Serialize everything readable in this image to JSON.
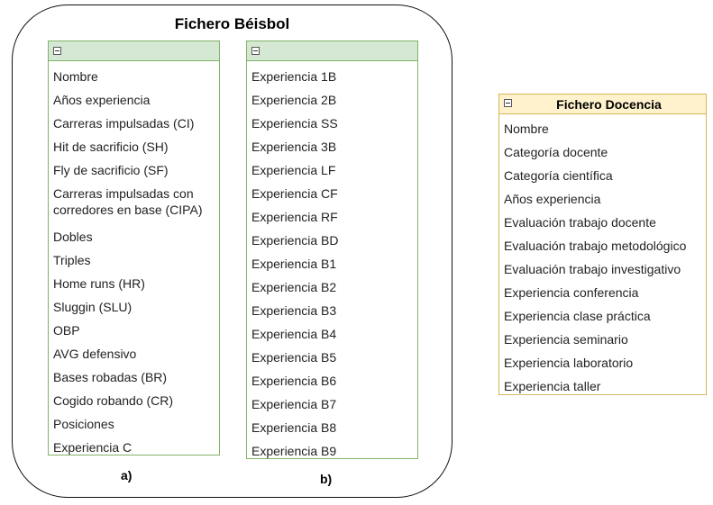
{
  "fichero_beisbol": {
    "title": "Fichero Béisbol",
    "caption_a": "a)",
    "caption_b": "b)",
    "table_a": {
      "attributes": [
        "Nombre",
        "Años experiencia",
        "Carreras impulsadas (CI)",
        "Hit de sacrificio (SH)",
        "Fly de sacrificio (SF)",
        "Carreras impulsadas con corredores en base (CIPA)",
        "Dobles",
        "Triples",
        "Home runs (HR)",
        "Sluggin (SLU)",
        "OBP",
        "AVG defensivo",
        "Bases robadas (BR)",
        "Cogido robando (CR)",
        "Posiciones",
        "Experiencia C"
      ]
    },
    "table_b": {
      "attributes": [
        "Experiencia 1B",
        "Experiencia 2B",
        "Experiencia SS",
        "Experiencia 3B",
        "Experiencia LF",
        "Experiencia CF",
        "Experiencia RF",
        "Experiencia BD",
        "Experiencia B1",
        "Experiencia B2",
        "Experiencia B3",
        "Experiencia B4",
        "Experiencia B5",
        "Experiencia B6",
        "Experiencia B7",
        "Experiencia B8",
        "Experiencia B9"
      ]
    }
  },
  "fichero_docencia": {
    "title": "Fichero Docencia",
    "attributes": [
      "Nombre",
      "Categoría docente",
      "Categoría científica",
      "Años experiencia",
      "Evaluación trabajo docente",
      "Evaluación trabajo metodológico",
      "Evaluación trabajo investigativo",
      "Experiencia conferencia",
      "Experiencia clase práctica",
      "Experiencia seminario",
      "Experiencia laboratorio",
      "Experiencia taller"
    ]
  },
  "colors": {
    "green_border": "#82b366",
    "green_fill": "#d5e8d4",
    "yellow_border": "#d6b656",
    "yellow_fill": "#fff2cc"
  },
  "icons": {
    "collapse": "collapse-icon"
  }
}
